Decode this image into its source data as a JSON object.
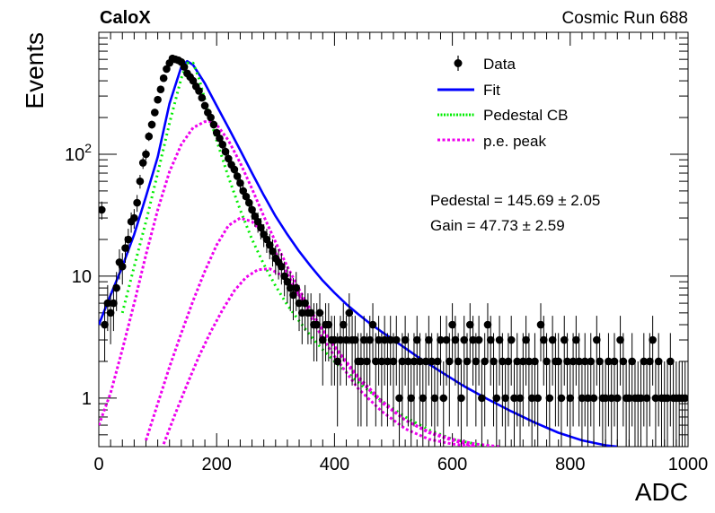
{
  "chart_data": {
    "type": "scatter",
    "experiment_label": "CaloX",
    "run_label": "Cosmic Run 688",
    "xlabel": "ADC",
    "ylabel": "Events",
    "xlim": [
      0,
      1000
    ],
    "ylim": [
      0.4,
      1000
    ],
    "yscale": "log",
    "grid": false,
    "x_ticks": [
      {
        "value": 0,
        "label": "0"
      },
      {
        "value": 200,
        "label": "200"
      },
      {
        "value": 400,
        "label": "400"
      },
      {
        "value": 600,
        "label": "600"
      },
      {
        "value": 800,
        "label": "800"
      },
      {
        "value": 1000,
        "label": "1000"
      }
    ],
    "y_ticks": [
      {
        "value": 1,
        "label": "1"
      },
      {
        "value": 10,
        "label": "10"
      },
      {
        "value": 100,
        "label": "10",
        "exponent": "2"
      }
    ],
    "legend": {
      "placement": "top-right",
      "entries": [
        {
          "label": "Data",
          "series": "data"
        },
        {
          "label": "Fit",
          "series": "fit"
        },
        {
          "label": "Pedestal CB",
          "series": "pedestal"
        },
        {
          "label": "p.e. peak",
          "series": "pe"
        }
      ]
    },
    "annotations": [
      "Pedestal = 145.69 ± 2.05",
      "Gain = 47.73 ± 2.59"
    ],
    "colors": {
      "data": "#000000",
      "fit": "#0000ff",
      "pedestal": "#00ee00",
      "pe": "#ee00ee"
    },
    "series": [
      {
        "id": "data",
        "name": "Data",
        "style": "points-with-errors",
        "x": [
          5,
          10,
          15,
          20,
          25,
          30,
          35,
          40,
          45,
          50,
          55,
          60,
          65,
          70,
          75,
          80,
          85,
          90,
          95,
          100,
          105,
          110,
          115,
          120,
          125,
          130,
          135,
          140,
          145,
          150,
          155,
          160,
          165,
          170,
          175,
          180,
          185,
          190,
          195,
          200,
          205,
          210,
          215,
          220,
          225,
          230,
          235,
          240,
          245,
          250,
          255,
          260,
          265,
          270,
          275,
          280,
          285,
          290,
          295,
          300,
          305,
          310,
          315,
          320,
          325,
          330,
          335,
          340,
          345,
          350,
          355,
          360,
          365,
          370,
          375,
          380,
          385,
          390,
          395,
          400,
          405,
          410,
          415,
          420,
          425,
          430,
          435,
          440,
          445,
          450,
          455,
          460,
          465,
          470,
          475,
          480,
          485,
          490,
          495,
          500,
          505,
          510,
          515,
          520,
          525,
          530,
          535,
          540,
          545,
          550,
          555,
          560,
          565,
          570,
          575,
          580,
          585,
          590,
          595,
          600,
          605,
          610,
          615,
          620,
          625,
          630,
          635,
          640,
          645,
          650,
          655,
          660,
          665,
          670,
          675,
          680,
          685,
          690,
          695,
          700,
          705,
          710,
          715,
          720,
          725,
          730,
          735,
          740,
          745,
          750,
          755,
          760,
          765,
          770,
          775,
          780,
          785,
          790,
          795,
          800,
          805,
          810,
          815,
          820,
          825,
          830,
          835,
          840,
          845,
          850,
          855,
          860,
          865,
          870,
          875,
          880,
          885,
          890,
          895,
          900,
          905,
          910,
          915,
          920,
          925,
          930,
          935,
          940,
          945,
          950,
          955,
          960,
          965,
          970,
          975,
          980,
          985,
          990,
          995
        ],
        "y": [
          35,
          4,
          6,
          5,
          6,
          8,
          13,
          12,
          17,
          20,
          28,
          30,
          40,
          60,
          85,
          100,
          140,
          175,
          220,
          280,
          340,
          420,
          500,
          560,
          610,
          600,
          590,
          570,
          520,
          460,
          430,
          400,
          360,
          330,
          290,
          250,
          220,
          200,
          175,
          150,
          135,
          120,
          105,
          92,
          82,
          75,
          66,
          58,
          50,
          45,
          40,
          35,
          31,
          28,
          25,
          22,
          20,
          18,
          16,
          14,
          13,
          12,
          10,
          9,
          8,
          7,
          8,
          6,
          5,
          6,
          5,
          5,
          4,
          4,
          5,
          3,
          4,
          4,
          3,
          3,
          2,
          3,
          4,
          3,
          5,
          3,
          3,
          2,
          2,
          3,
          2,
          3,
          4,
          2,
          3,
          2,
          3,
          2,
          3,
          2,
          3,
          1,
          2,
          3,
          2,
          1,
          2,
          3,
          2,
          1,
          2,
          3,
          2,
          1,
          2,
          3,
          1,
          3,
          2,
          4,
          3,
          2,
          1,
          3,
          2,
          4,
          3,
          2,
          3,
          1,
          2,
          4,
          3,
          2,
          1,
          3,
          2,
          1,
          2,
          3,
          1,
          2,
          1,
          2,
          3,
          2,
          1,
          2,
          1,
          4,
          3,
          2,
          1,
          3,
          2,
          2,
          1,
          3,
          2,
          1,
          2,
          3,
          2,
          1,
          2,
          1,
          2,
          1,
          3,
          2,
          1,
          1,
          2,
          1,
          2,
          1,
          3,
          2,
          1,
          1,
          2,
          1,
          1,
          1,
          2,
          1,
          2,
          3,
          1,
          2,
          1,
          1,
          1,
          2,
          1,
          1,
          1,
          1,
          1
        ]
      },
      {
        "id": "fit",
        "name": "Fit",
        "style": "solid",
        "x": [
          0,
          20,
          40,
          60,
          80,
          100,
          120,
          140,
          150,
          160,
          180,
          200,
          220,
          240,
          260,
          280,
          300,
          320,
          340,
          360,
          380,
          400,
          420,
          440,
          460,
          480,
          500,
          540,
          580,
          620,
          660,
          700,
          740,
          780,
          820,
          860,
          880
        ],
        "y": [
          4,
          7,
          12,
          22,
          45,
          95,
          260,
          520,
          580,
          540,
          380,
          250,
          165,
          108,
          70,
          46,
          31,
          22,
          16,
          12,
          9.2,
          7.3,
          5.9,
          4.9,
          4.1,
          3.5,
          3.0,
          2.2,
          1.65,
          1.25,
          0.98,
          0.78,
          0.63,
          0.52,
          0.45,
          0.41,
          0.4
        ]
      },
      {
        "id": "pedestal",
        "name": "Pedestal CB",
        "style": "dotted",
        "x": [
          40,
          60,
          80,
          100,
          120,
          140,
          150,
          160,
          170,
          180,
          190,
          200,
          220,
          240,
          260,
          280,
          300,
          320,
          340,
          360,
          380,
          400,
          440,
          480,
          520,
          560,
          600,
          640,
          660
        ],
        "y": [
          5,
          12,
          28,
          70,
          180,
          420,
          560,
          560,
          420,
          280,
          190,
          130,
          65,
          35,
          20,
          12.5,
          8.3,
          5.8,
          4.3,
          3.2,
          2.5,
          2.0,
          1.35,
          0.95,
          0.7,
          0.55,
          0.46,
          0.42,
          0.4
        ]
      },
      {
        "id": "pe1",
        "name": "p.e. peak",
        "style": "dotted",
        "x": [
          0,
          20,
          40,
          60,
          80,
          100,
          120,
          140,
          160,
          180,
          190,
          200,
          220,
          240,
          260,
          280,
          300,
          320,
          340,
          360,
          380,
          400,
          440,
          480,
          520,
          560,
          600,
          640,
          680
        ],
        "y": [
          0.6,
          1.1,
          2.5,
          6,
          15,
          35,
          72,
          120,
          165,
          185,
          185,
          175,
          130,
          85,
          52,
          31,
          19,
          12,
          7.8,
          5.2,
          3.6,
          2.6,
          1.45,
          0.92,
          0.66,
          0.53,
          0.46,
          0.42,
          0.4
        ]
      },
      {
        "id": "pe2",
        "name": "p.e. peak",
        "style": "dotted",
        "x": [
          80,
          100,
          120,
          140,
          160,
          180,
          200,
          220,
          240,
          260,
          280,
          300,
          320,
          340,
          360,
          380,
          400,
          440,
          480,
          520,
          560,
          600,
          640
        ],
        "y": [
          0.45,
          0.9,
          1.8,
          3.4,
          6.3,
          11,
          18,
          26,
          30,
          28,
          22,
          15.5,
          10.5,
          7,
          4.6,
          3.1,
          2.2,
          1.2,
          0.78,
          0.56,
          0.46,
          0.42,
          0.4
        ]
      },
      {
        "id": "pe3",
        "name": "p.e. peak",
        "style": "dotted",
        "x": [
          110,
          130,
          150,
          170,
          190,
          210,
          230,
          250,
          270,
          290,
          310,
          330,
          350,
          370,
          390,
          410,
          440,
          480,
          520,
          560,
          600,
          640
        ],
        "y": [
          0.42,
          0.75,
          1.3,
          2.2,
          3.5,
          5.3,
          7.6,
          9.8,
          11.3,
          11.5,
          10.2,
          8.1,
          6,
          4.3,
          3.1,
          2.3,
          1.5,
          0.95,
          0.66,
          0.52,
          0.45,
          0.4
        ]
      }
    ]
  }
}
